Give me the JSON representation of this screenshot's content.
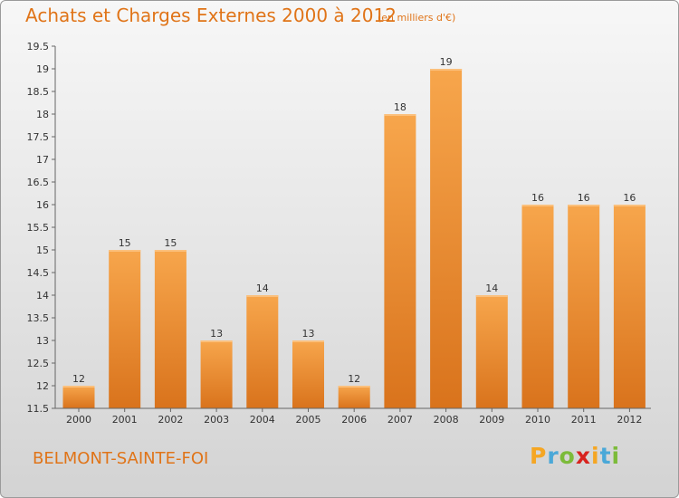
{
  "title": "Achats et Charges Externes 2000 à 2012",
  "subtitle": "(en milliers d'€)",
  "place": "BELMONT-SAINTE-FOI",
  "logo": {
    "letters": [
      "P",
      "r",
      "o",
      "x",
      "i",
      "t",
      "i"
    ],
    "colors": [
      "#f5a623",
      "#4aa8d8",
      "#7cbb3a",
      "#d8231f",
      "#f5a623",
      "#4aa8d8",
      "#7cbb3a"
    ]
  },
  "colors": {
    "bar_top": "#f7a64c",
    "bar_bottom": "#d9731c",
    "axis": "#666666",
    "grid": "#cccccc",
    "text": "#333333",
    "accent": "#e07418"
  },
  "chart_data": {
    "type": "bar",
    "title": "Achats et Charges Externes 2000 à 2012",
    "subtitle": "(en milliers d'€)",
    "categories": [
      "2000",
      "2001",
      "2002",
      "2003",
      "2004",
      "2005",
      "2006",
      "2007",
      "2008",
      "2009",
      "2010",
      "2011",
      "2012"
    ],
    "values": [
      12,
      15,
      15,
      13,
      14,
      13,
      12,
      18,
      19,
      14,
      16,
      16,
      16
    ],
    "data_labels": [
      "12",
      "15",
      "15",
      "13",
      "14",
      "13",
      "12",
      "18",
      "19",
      "14",
      "16",
      "16",
      "16"
    ],
    "ylim": [
      11.5,
      19.5
    ],
    "yticks": [
      "11.5",
      "12",
      "12.5",
      "13",
      "13.5",
      "14",
      "14.5",
      "15",
      "15.5",
      "16",
      "16.5",
      "17",
      "17.5",
      "18",
      "18.5",
      "19",
      "19.5"
    ],
    "xlabel": "",
    "ylabel": "",
    "grid": false,
    "legend": "none"
  }
}
